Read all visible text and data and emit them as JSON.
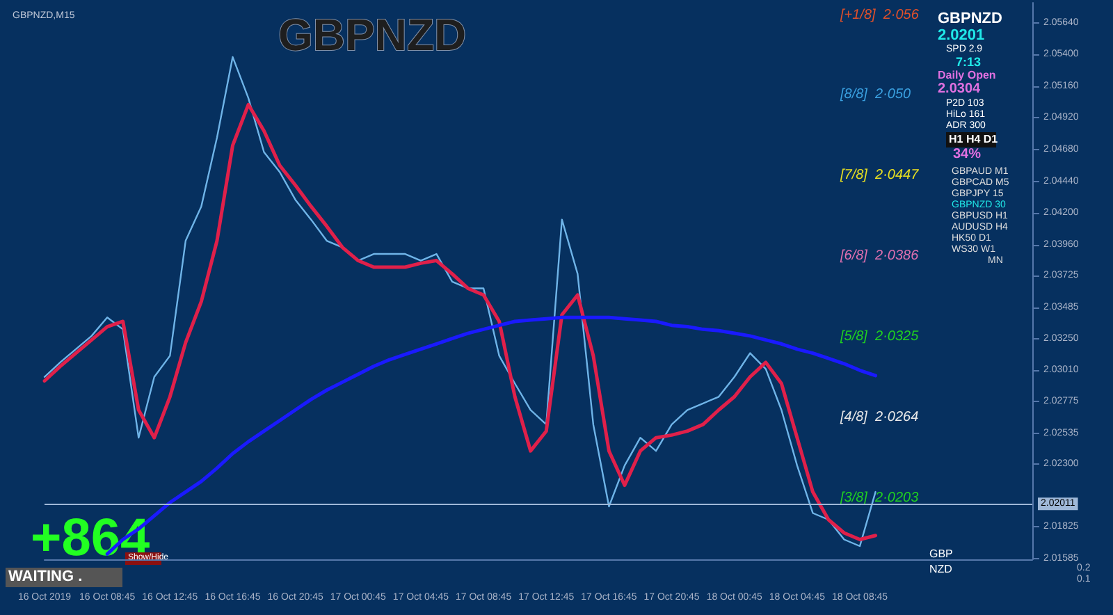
{
  "chart_data": {
    "type": "line",
    "title": "GBPNZD",
    "subtitle": "GBPNZD,M15",
    "categories": [
      "16 Oct 2019",
      null,
      null,
      null,
      "16 Oct 08:45",
      null,
      null,
      null,
      "16 Oct 12:45",
      null,
      null,
      null,
      "16 Oct 16:45",
      null,
      null,
      null,
      "16 Oct 20:45",
      null,
      null,
      null,
      "17 Oct 00:45",
      null,
      null,
      null,
      "17 Oct 04:45",
      null,
      null,
      null,
      "17 Oct 08:45",
      null,
      null,
      null,
      "17 Oct 12:45",
      null,
      null,
      null,
      "17 Oct 16:45",
      null,
      null,
      null,
      "17 Oct 20:45",
      null,
      null,
      null,
      "18 Oct 00:45",
      null,
      null,
      null,
      "18 Oct 04:45",
      null,
      null,
      null,
      "18 Oct 08:45",
      null,
      null,
      null,
      null,
      null,
      null,
      null,
      null,
      null,
      null,
      null
    ],
    "series": [
      {
        "color": "#6fb4e8",
        "values": [
          2.0296,
          2.0307,
          2.0317,
          2.0327,
          2.0341,
          2.0332,
          2.025,
          2.0296,
          2.0312,
          2.0399,
          2.0425,
          2.0477,
          2.0538,
          2.0507,
          2.0466,
          2.0451,
          2.043,
          2.0415,
          2.0399,
          2.0394,
          2.0384,
          2.0389,
          2.0389,
          2.0389,
          2.0384,
          2.0389,
          2.0368,
          2.0363,
          2.0363,
          2.0312,
          2.0291,
          2.0271,
          2.026,
          2.0415,
          2.0374,
          2.026,
          2.0198,
          2.0229,
          2.025,
          2.024,
          2.026,
          2.0271,
          2.0276,
          2.0281,
          2.0296,
          2.0314,
          2.0302,
          2.0271,
          2.0229,
          2.0193,
          2.0188,
          2.0173,
          2.0168,
          2.0209,
          null,
          null,
          null,
          null,
          null,
          null,
          null,
          null,
          null,
          null
        ]
      },
      {
        "color": "#e0204a",
        "values": [
          2.0293,
          2.0304,
          2.0314,
          2.0324,
          2.0334,
          2.0338,
          2.0271,
          2.025,
          2.0281,
          2.0322,
          2.0353,
          2.0399,
          2.0471,
          2.0502,
          2.0482,
          2.0456,
          2.0441,
          2.0425,
          2.041,
          2.0394,
          2.0384,
          2.0379,
          2.0379,
          2.0379,
          2.0382,
          2.0384,
          2.0374,
          2.0363,
          2.0358,
          2.0338,
          2.0281,
          2.024,
          2.0255,
          2.0343,
          2.0358,
          2.0312,
          2.024,
          2.0214,
          2.024,
          2.025,
          2.0252,
          2.0255,
          2.026,
          2.0271,
          2.0281,
          2.0296,
          2.0307,
          2.0291,
          2.025,
          2.0209,
          2.0188,
          2.0178,
          2.0173,
          2.0176,
          null,
          null,
          null,
          null,
          null,
          null,
          null,
          null,
          null,
          null
        ]
      },
      {
        "color": "#1a1aff",
        "values": [
          null,
          null,
          null,
          null,
          2.0162,
          2.0173,
          2.0181,
          2.0191,
          2.0201,
          2.0209,
          2.0217,
          2.0227,
          2.0238,
          2.0247,
          2.0255,
          2.0263,
          2.0271,
          2.0279,
          2.0286,
          2.0292,
          2.0298,
          2.0304,
          2.0309,
          2.0313,
          2.0317,
          2.0321,
          2.0325,
          2.0329,
          2.0332,
          2.0335,
          2.0338,
          2.0339,
          2.034,
          2.0341,
          2.0341,
          2.0341,
          2.0341,
          2.034,
          2.0339,
          2.0338,
          2.0335,
          2.0334,
          2.0332,
          2.0331,
          2.0329,
          2.0327,
          2.0324,
          2.0321,
          2.0317,
          2.0314,
          2.031,
          2.0306,
          2.0301,
          2.0297,
          null,
          null,
          null,
          null,
          null,
          null,
          null,
          null,
          null,
          null
        ]
      }
    ],
    "ylim": [
      2.0158,
      2.0579
    ],
    "yticks": [
      {
        "value": 2.0564,
        "label": "2.05640"
      },
      {
        "value": 2.054,
        "label": "2.05400"
      },
      {
        "value": 2.0516,
        "label": "2.05160"
      },
      {
        "value": 2.0492,
        "label": "2.04920"
      },
      {
        "value": 2.0468,
        "label": "2.04680"
      },
      {
        "value": 2.0444,
        "label": "2.04440"
      },
      {
        "value": 2.042,
        "label": "2.04200"
      },
      {
        "value": 2.0396,
        "label": "2.03960"
      },
      {
        "value": 2.03725,
        "label": "2.03725"
      },
      {
        "value": 2.03485,
        "label": "2.03485"
      },
      {
        "value": 2.0325,
        "label": "2.03250"
      },
      {
        "value": 2.0301,
        "label": "2.03010"
      },
      {
        "value": 2.02775,
        "label": "2.02775"
      },
      {
        "value": 2.02535,
        "label": "2.02535"
      },
      {
        "value": 2.023,
        "label": "2.02300"
      },
      {
        "value": 2.01825,
        "label": "2.01825"
      },
      {
        "value": 2.01585,
        "label": "2.01585"
      }
    ],
    "ref_lines": [
      {
        "axis": "y",
        "value": 2.02011,
        "label": "2.02011",
        "color": "#9fb8d8"
      }
    ],
    "annotations": [
      "[+1/8]  2·056",
      "[8/8]  2·050",
      "[7/8]  2·0447",
      "[6/8]  2·0386",
      "[5/8]  2·0325",
      "[4/8]  2·0264",
      "[3/8]  2·0203",
      "+864",
      "WAITING .",
      "Show/Hide",
      "GBPNZD",
      "2.0201",
      "SPD 2.9",
      "7:13",
      "Daily Open",
      "2.0304",
      "P2D 103",
      "HiLo 161",
      "ADR 300",
      "H1 H4 D1",
      "34%",
      "GBPAUD M1",
      "GBPCAD M5",
      "GBPJPY 15",
      "GBPNZD 30",
      "GBPUSD H1",
      "AUDUSD H4",
      "HK50 D1",
      "WS30 W1",
      "MN",
      "GBP",
      "NZD",
      "0.2",
      "0.1"
    ],
    "grid": false,
    "marker": "none",
    "line_style": "solid"
  }
}
